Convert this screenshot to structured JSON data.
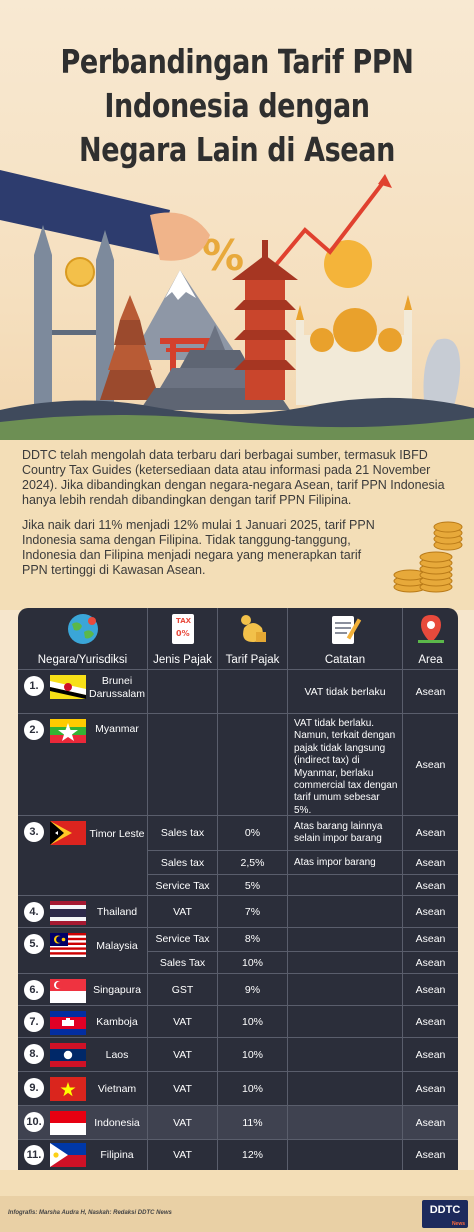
{
  "title": {
    "line1": "Perbandingan Tarif PPN",
    "line2": "Indonesia dengan",
    "line3": "Negara Lain di Asean"
  },
  "hero": {
    "percent_symbol": "%"
  },
  "intro": {
    "paragraph1": "DDTC telah mengolah data terbaru dari berbagai sumber, termasuk IBFD Country Tax Guides (ketersediaan data atau informasi pada 21 November 2024). Jika dibandingkan dengan negara-negara Asean, tarif PPN Indonesia hanya lebih rendah dibandingkan dengan tarif PPN Filipina.",
    "paragraph2": "Jika naik dari 11% menjadi 12% mulai 1 Januari 2025, tarif PPN Indonesia sama dengan Filipina. Tidak tanggung-tanggung, Indonesia dan Filipina menjadi negara yang menerapkan tarif PPN tertinggi di Kawasan Asean."
  },
  "table": {
    "headers": {
      "country": "Negara/Yurisdiksi",
      "tax_type": "Jenis Pajak",
      "tax_rate": "Tarif Pajak",
      "note": "Catatan",
      "area": "Area"
    },
    "header_icon_labels": {
      "tax": "TAX",
      "tax_pct": "0%"
    },
    "rows": [
      {
        "num": "1.",
        "country": "Brunei Darussalam",
        "tax_type": "",
        "rate": "",
        "note": "VAT tidak berlaku",
        "area": "Asean"
      },
      {
        "num": "2.",
        "country": "Myanmar",
        "tax_type": "",
        "rate": "",
        "note": "VAT tidak berlaku. Namun, terkait dengan pajak tidak langsung (indirect tax) di Myanmar, berlaku commercial tax dengan tarif umum sebesar 5%.",
        "area": "Asean"
      },
      {
        "num": "3.",
        "country": "Timor Leste",
        "subs": [
          {
            "tax_type": "Sales tax",
            "rate": "0%",
            "note": "Atas barang lainnya selain impor barang",
            "area": "Asean"
          },
          {
            "tax_type": "Sales tax",
            "rate": "2,5%",
            "note": "Atas impor barang",
            "area": "Asean"
          },
          {
            "tax_type": "Service Tax",
            "rate": "5%",
            "note": "",
            "area": "Asean"
          }
        ]
      },
      {
        "num": "4.",
        "country": "Thailand",
        "tax_type": "VAT",
        "rate": "7%",
        "note": "",
        "area": "Asean"
      },
      {
        "num": "5.",
        "country": "Malaysia",
        "subs": [
          {
            "tax_type": "Service Tax",
            "rate": "8%",
            "note": "",
            "area": "Asean"
          },
          {
            "tax_type": "Sales Tax",
            "rate": "10%",
            "note": "",
            "area": "Asean"
          }
        ]
      },
      {
        "num": "6.",
        "country": "Singapura",
        "tax_type": "GST",
        "rate": "9%",
        "note": "",
        "area": "Asean"
      },
      {
        "num": "7.",
        "country": "Kamboja",
        "tax_type": "VAT",
        "rate": "10%",
        "note": "",
        "area": "Asean"
      },
      {
        "num": "8.",
        "country": "Laos",
        "tax_type": "VAT",
        "rate": "10%",
        "note": "",
        "area": "Asean"
      },
      {
        "num": "9.",
        "country": "Vietnam",
        "tax_type": "VAT",
        "rate": "10%",
        "note": "",
        "area": "Asean"
      },
      {
        "num": "10.",
        "country": "Indonesia",
        "tax_type": "VAT",
        "rate": "11%",
        "note": "",
        "area": "Asean"
      },
      {
        "num": "11.",
        "country": "Filipina",
        "tax_type": "VAT",
        "rate": "12%",
        "note": "",
        "area": "Asean"
      }
    ]
  },
  "footer": {
    "credit": "Infografis: Marsha Audra H, Naskah: Redaksi DDTC News",
    "logo": "DDTC",
    "logo_sub": "News"
  },
  "colors": {
    "background": "#f6e6cc",
    "table_bg": "#2b2e3a",
    "highlight_row": "#3f4250",
    "title_text": "#2f2f2f"
  }
}
